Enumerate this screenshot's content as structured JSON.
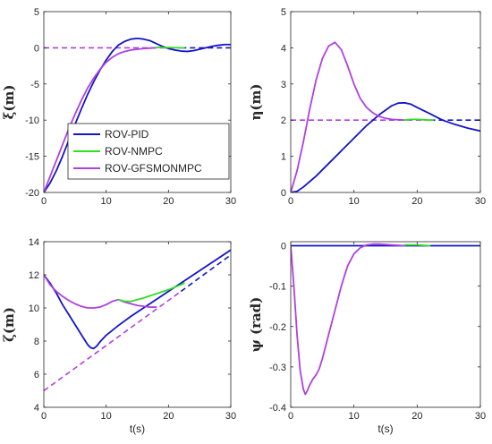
{
  "series_styles": [
    {
      "name": "ROV-PID",
      "color": "#1414c8"
    },
    {
      "name": "ROV-NMPC",
      "color": "#33dd22"
    },
    {
      "name": "ROV-GFSMONMPC",
      "color": "#b040e0"
    }
  ],
  "reference_color_purple": "#b040e0",
  "reference_color_blue": "#1414c8",
  "chart_data": [
    {
      "type": "line",
      "ylabel": "ξ(m)",
      "xlabel": "",
      "xlim": [
        0,
        30
      ],
      "ylim": [
        -20,
        5
      ],
      "xticks": [
        0,
        10,
        20,
        30
      ],
      "yticks": [
        -20,
        -15,
        -10,
        -5,
        0,
        5
      ],
      "legend": {
        "placement": "bottom-left",
        "entries": [
          "ROV-PID",
          "ROV-NMPC",
          "ROV-GFSMONMPC"
        ]
      },
      "series": [
        {
          "name": "ROV-PID",
          "x": [
            0,
            1,
            2,
            3,
            4,
            5,
            6,
            7,
            8,
            9,
            10,
            11,
            12,
            13,
            14,
            15,
            16,
            17,
            18,
            19,
            20,
            21,
            22,
            23,
            24,
            25,
            26,
            27,
            28,
            29,
            30
          ],
          "y": [
            -20,
            -18.7,
            -17,
            -15,
            -12.8,
            -10.6,
            -8.5,
            -6.5,
            -4.7,
            -3.1,
            -1.7,
            -0.5,
            0.4,
            0.9,
            1.2,
            1.3,
            1.2,
            1.0,
            0.6,
            0.2,
            -0.1,
            -0.3,
            -0.45,
            -0.5,
            -0.4,
            -0.2,
            0.0,
            0.2,
            0.35,
            0.45,
            0.45
          ]
        },
        {
          "name": "ROV-NMPC",
          "x": [
            18,
            19,
            20,
            21,
            22,
            22.5
          ],
          "y": [
            0.05,
            0.05,
            0.05,
            0.02,
            0.0,
            0.0
          ]
        },
        {
          "name": "ROV-GFSMONMPC",
          "x": [
            0,
            1,
            2,
            3,
            4,
            5,
            6,
            7,
            8,
            9,
            10,
            11,
            12,
            13,
            14,
            15,
            16,
            17,
            18
          ],
          "y": [
            -20,
            -17.8,
            -15.6,
            -13.4,
            -11.2,
            -9.2,
            -7.3,
            -5.6,
            -4.2,
            -3.0,
            -2.0,
            -1.3,
            -0.8,
            -0.5,
            -0.3,
            -0.2,
            -0.1,
            -0.05,
            0.0
          ]
        },
        {
          "name": "reference-purple",
          "dashed": true,
          "x": [
            0,
            22
          ],
          "y": [
            0,
            0
          ]
        },
        {
          "name": "reference-blue",
          "dashed": true,
          "x": [
            22,
            30
          ],
          "y": [
            0,
            0
          ]
        }
      ]
    },
    {
      "type": "line",
      "ylabel": "η(m)",
      "xlabel": "",
      "xlim": [
        0,
        30
      ],
      "ylim": [
        0,
        5
      ],
      "xticks": [
        0,
        10,
        20,
        30
      ],
      "yticks": [
        0,
        1,
        2,
        3,
        4,
        5
      ],
      "series": [
        {
          "name": "ROV-PID",
          "x": [
            0,
            1,
            2,
            4,
            6,
            8,
            10,
            12,
            14,
            16,
            17,
            18,
            19,
            20,
            22,
            24,
            26,
            28,
            30
          ],
          "y": [
            0,
            0.03,
            0.15,
            0.45,
            0.8,
            1.15,
            1.5,
            1.85,
            2.15,
            2.4,
            2.47,
            2.48,
            2.44,
            2.35,
            2.18,
            2.0,
            1.88,
            1.78,
            1.7
          ]
        },
        {
          "name": "ROV-NMPC",
          "x": [
            18,
            19,
            20,
            21,
            22,
            22.5
          ],
          "y": [
            2.0,
            2.02,
            2.02,
            2.01,
            2.0,
            2.0
          ]
        },
        {
          "name": "ROV-GFSMONMPC",
          "x": [
            0,
            1,
            2,
            3,
            4,
            5,
            6,
            7,
            8,
            9,
            10,
            11,
            12,
            13,
            14,
            15,
            16,
            17,
            18
          ],
          "y": [
            0,
            0.6,
            1.4,
            2.3,
            3.1,
            3.7,
            4.05,
            4.15,
            3.95,
            3.5,
            3.0,
            2.6,
            2.35,
            2.2,
            2.1,
            2.05,
            2.02,
            2.01,
            2.0
          ]
        },
        {
          "name": "reference-purple",
          "dashed": true,
          "x": [
            0,
            22
          ],
          "y": [
            2,
            2
          ]
        },
        {
          "name": "reference-blue",
          "dashed": true,
          "x": [
            22,
            30
          ],
          "y": [
            2,
            2
          ]
        }
      ]
    },
    {
      "type": "line",
      "ylabel": "ζ(m)",
      "xlabel": "t(s)",
      "xlim": [
        0,
        30
      ],
      "ylim": [
        4,
        14
      ],
      "xticks": [
        0,
        10,
        20,
        30
      ],
      "yticks": [
        4,
        6,
        8,
        10,
        12,
        14
      ],
      "series": [
        {
          "name": "ROV-PID",
          "x": [
            0,
            1,
            2,
            3,
            4,
            5,
            6,
            7,
            7.5,
            8,
            8.5,
            9,
            10,
            12,
            14,
            16,
            18,
            20,
            22,
            24,
            26,
            28,
            30
          ],
          "y": [
            12,
            11.5,
            10.9,
            10.2,
            9.6,
            9.0,
            8.4,
            7.8,
            7.6,
            7.55,
            7.7,
            7.95,
            8.35,
            8.95,
            9.5,
            10.0,
            10.5,
            11.0,
            11.5,
            12.0,
            12.5,
            13.0,
            13.5
          ]
        },
        {
          "name": "ROV-NMPC",
          "x": [
            12,
            13,
            14,
            16,
            18,
            20,
            22,
            22.5
          ],
          "y": [
            10.5,
            10.4,
            10.4,
            10.6,
            10.85,
            11.1,
            11.4,
            11.5
          ]
        },
        {
          "name": "ROV-GFSMONMPC",
          "x": [
            0,
            1,
            2,
            3,
            4,
            5,
            6,
            7,
            8,
            9,
            10,
            11,
            12,
            13,
            14,
            15,
            16,
            17,
            18
          ],
          "y": [
            12,
            11.4,
            11.0,
            10.7,
            10.45,
            10.25,
            10.1,
            10.0,
            10.0,
            10.05,
            10.2,
            10.4,
            10.5,
            10.35,
            10.25,
            10.15,
            10.1,
            10.05,
            10.05
          ]
        },
        {
          "name": "reference-purple",
          "dashed": true,
          "x": [
            0,
            22
          ],
          "y": [
            5,
            11
          ]
        },
        {
          "name": "reference-blue",
          "dashed": true,
          "x": [
            22,
            30
          ],
          "y": [
            11,
            13.2
          ]
        }
      ]
    },
    {
      "type": "line",
      "ylabel": "ψ (rad)",
      "xlabel": "t(s)",
      "xlim": [
        0,
        30
      ],
      "ylim": [
        -0.4,
        0.01
      ],
      "xticks": [
        0,
        10,
        20,
        30
      ],
      "yticks": [
        -0.4,
        -0.3,
        -0.2,
        -0.1,
        0
      ],
      "series": [
        {
          "name": "ROV-PID",
          "x": [
            0,
            30
          ],
          "y": [
            0,
            0
          ]
        },
        {
          "name": "ROV-NMPC",
          "x": [
            18,
            19,
            20,
            21,
            22
          ],
          "y": [
            0.002,
            0.002,
            0.002,
            0.001,
            0.0
          ]
        },
        {
          "name": "ROV-GFSMONMPC",
          "x": [
            0,
            0.5,
            1,
            1.5,
            2,
            2.3,
            2.6,
            3,
            3.5,
            4,
            4.5,
            5,
            6,
            7,
            8,
            9,
            10,
            11,
            12,
            13,
            14,
            15,
            16,
            17,
            18
          ],
          "y": [
            0,
            -0.1,
            -0.22,
            -0.31,
            -0.355,
            -0.368,
            -0.36,
            -0.345,
            -0.33,
            -0.32,
            -0.305,
            -0.28,
            -0.22,
            -0.16,
            -0.1,
            -0.05,
            -0.02,
            -0.005,
            0.002,
            0.004,
            0.004,
            0.003,
            0.002,
            0.001,
            0.0
          ]
        }
      ]
    }
  ]
}
